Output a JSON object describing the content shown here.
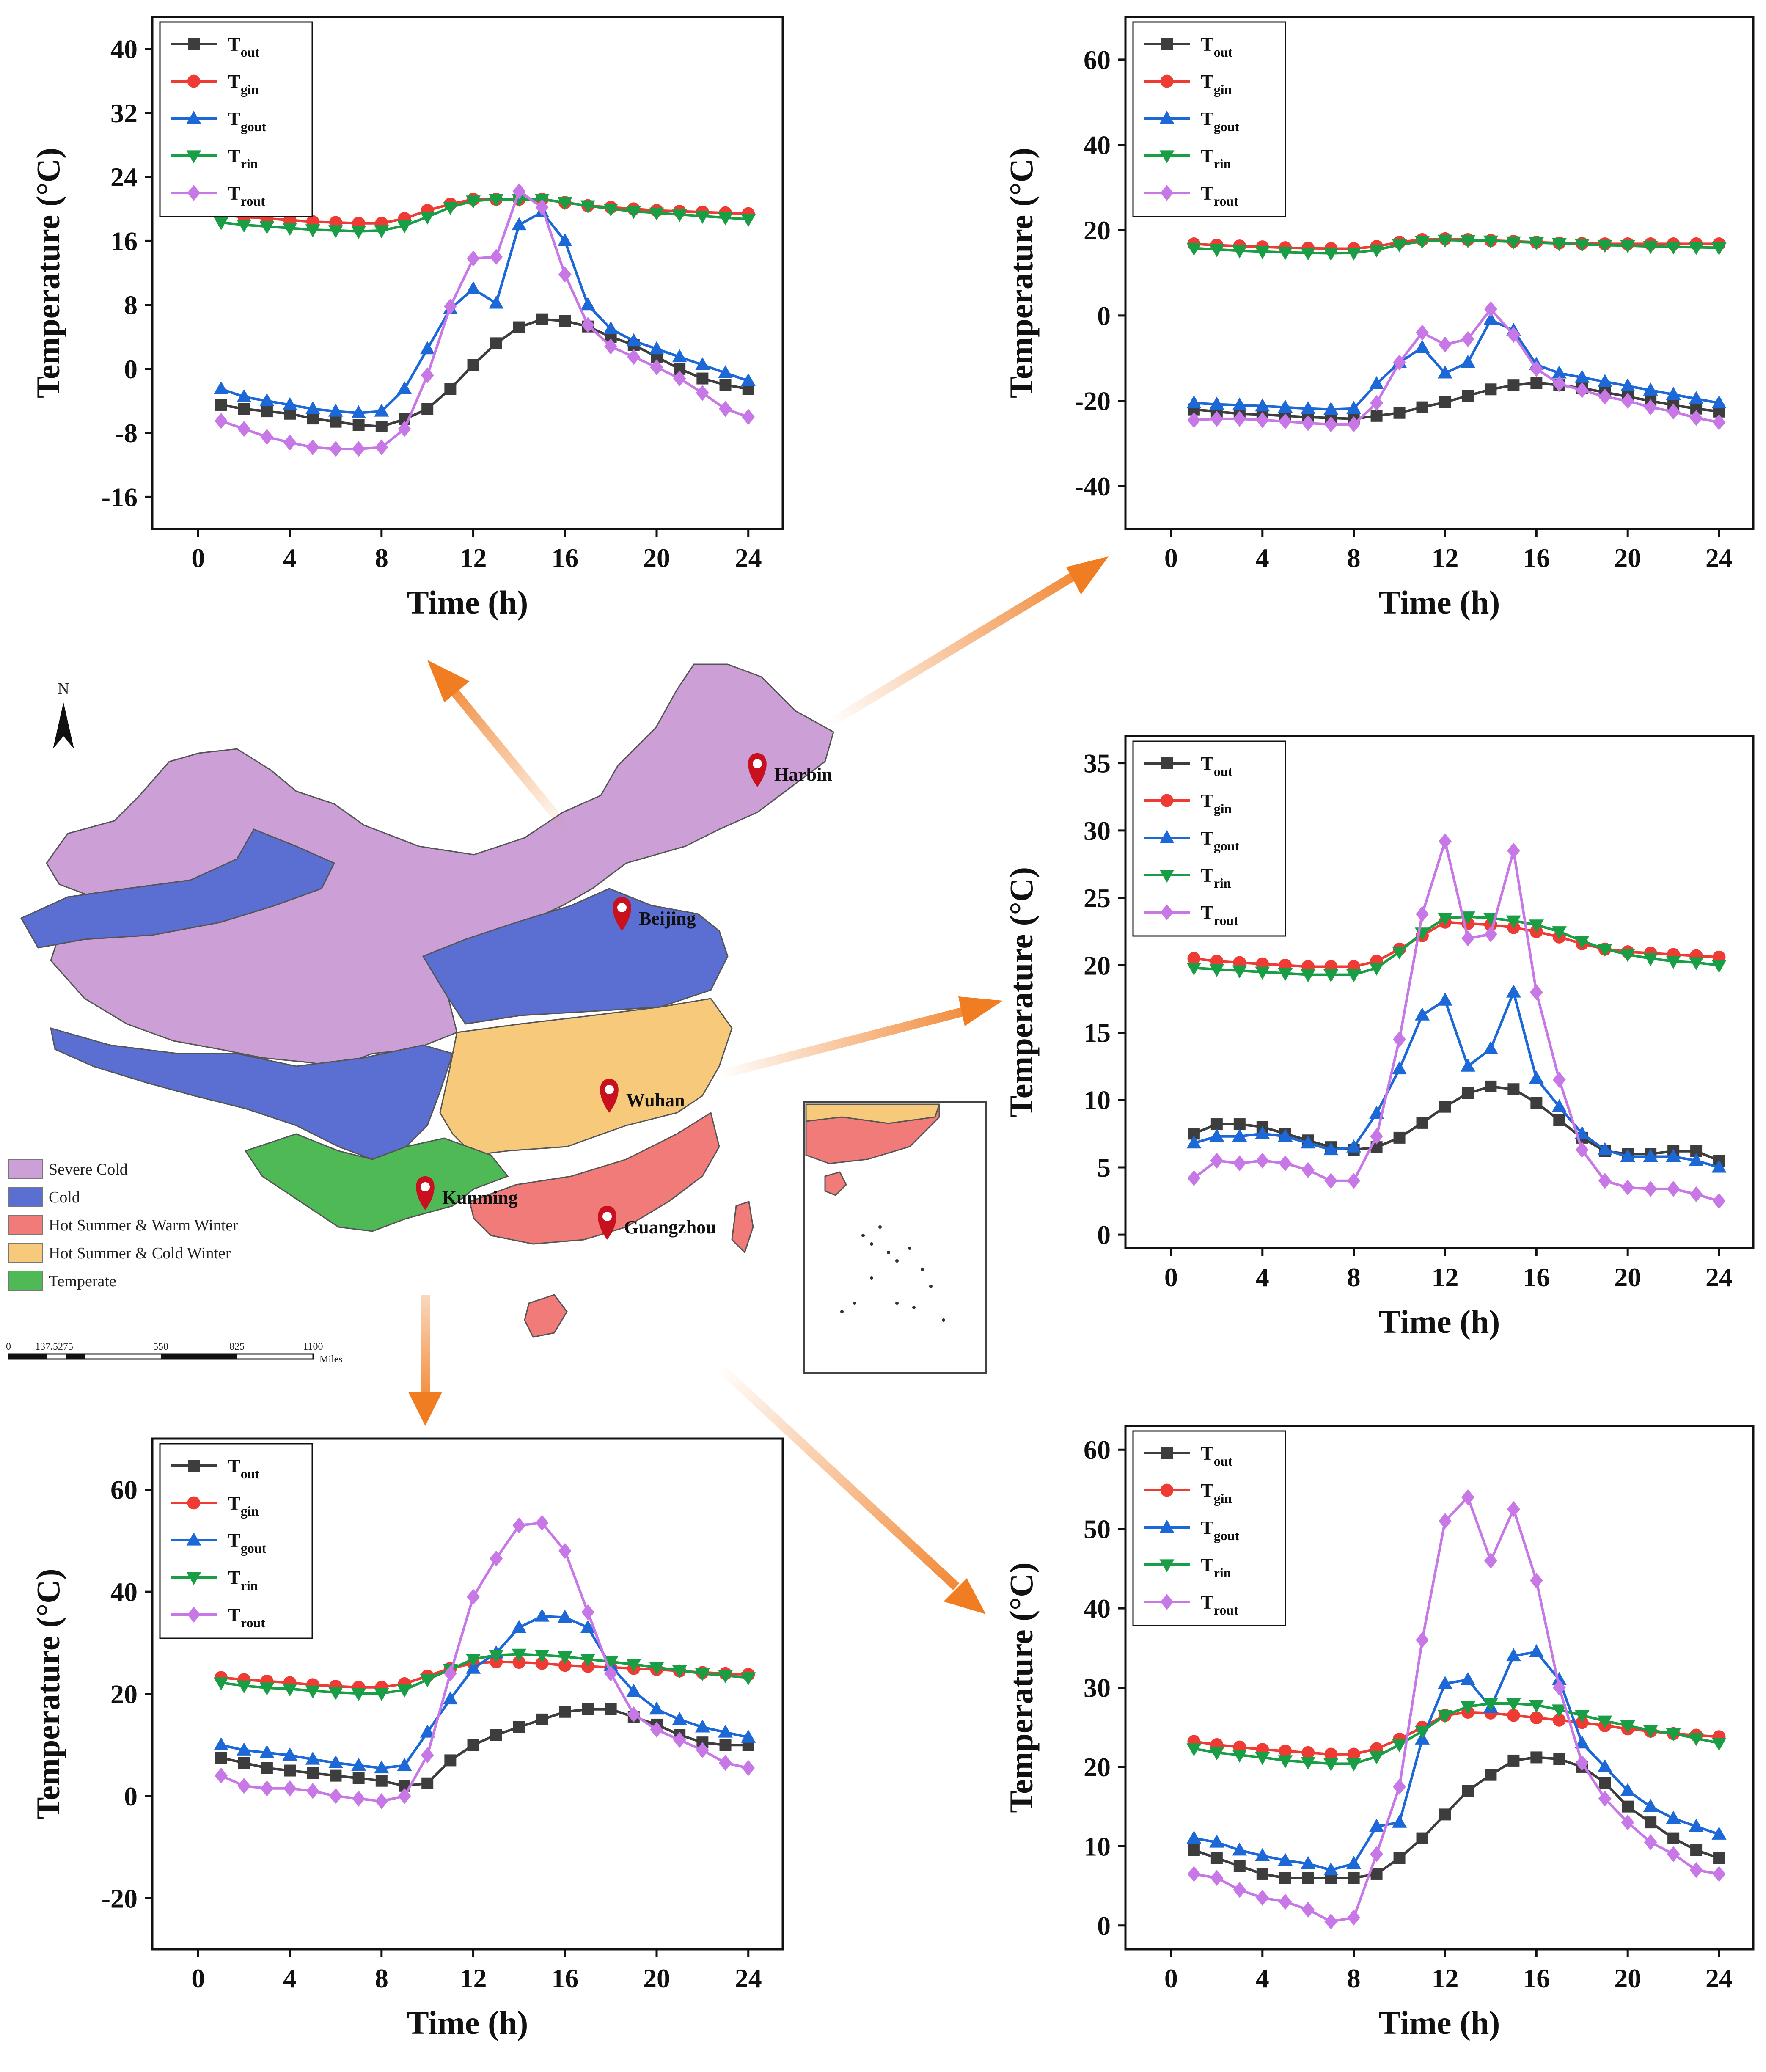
{
  "map": {
    "north_label": "N",
    "legend": [
      {
        "label": "Severe Cold",
        "color": "#cc9fd6"
      },
      {
        "label": "Cold",
        "color": "#5a6fd1"
      },
      {
        "label": "Hot Summer & Warm Winter",
        "color": "#f07b78"
      },
      {
        "label": "Hot Summer & Cold Winter",
        "color": "#f7c97a"
      },
      {
        "label": "Temperate",
        "color": "#4fba55"
      }
    ],
    "cities": [
      "Harbin",
      "Beijing",
      "Wuhan",
      "Kunming",
      "Guangzhou"
    ],
    "scale_ticks": [
      "0",
      "137.5",
      "275",
      "550",
      "825",
      "1100"
    ],
    "scale_unit": "Miles",
    "arrow_color": "#f07d22"
  },
  "chart_data": [
    {
      "id": "beijing",
      "type": "line",
      "xlabel": "Time (h)",
      "ylabel": "Temperature (°C)",
      "xlim": [
        -2,
        25.5
      ],
      "ylim": [
        -20,
        44
      ],
      "xticks": [
        0,
        4,
        8,
        12,
        16,
        20,
        24
      ],
      "yticks": [
        -16,
        -8,
        0,
        8,
        16,
        24,
        32,
        40
      ],
      "x": [
        1,
        2,
        3,
        4,
        5,
        6,
        7,
        8,
        9,
        10,
        11,
        12,
        13,
        14,
        15,
        16,
        17,
        18,
        19,
        20,
        21,
        22,
        23,
        24
      ],
      "series": [
        {
          "name": "T",
          "sub": "out",
          "color": "#3d3d3d",
          "marker": "square",
          "values": [
            -4.5,
            -5,
            -5.3,
            -5.6,
            -6.2,
            -6.6,
            -7,
            -7.2,
            -6.3,
            -5,
            -2.5,
            0.5,
            3.2,
            5.2,
            6.2,
            6,
            5.3,
            4,
            3,
            1.5,
            0,
            -1.2,
            -2,
            -2.5
          ]
        },
        {
          "name": "T",
          "sub": "gin",
          "color": "#ee3b33",
          "marker": "circle",
          "values": [
            19.2,
            19,
            18.8,
            18.6,
            18.4,
            18.3,
            18.2,
            18.2,
            18.8,
            19.8,
            20.6,
            21.2,
            21.2,
            21.2,
            21.2,
            20.8,
            20.4,
            20.2,
            20,
            19.8,
            19.7,
            19.6,
            19.5,
            19.4
          ]
        },
        {
          "name": "T",
          "sub": "gout",
          "color": "#1b68d6",
          "marker": "triangle-up",
          "values": [
            -2.5,
            -3.5,
            -4,
            -4.5,
            -5,
            -5.3,
            -5.5,
            -5.3,
            -2.5,
            2.5,
            7.5,
            10,
            8.2,
            18,
            19.6,
            16,
            8,
            5,
            3.5,
            2.5,
            1.5,
            0.5,
            -0.5,
            -1.5
          ]
        },
        {
          "name": "T",
          "sub": "rin",
          "color": "#1a9e45",
          "marker": "triangle-down",
          "values": [
            18.3,
            18,
            17.8,
            17.6,
            17.4,
            17.3,
            17.2,
            17.3,
            17.9,
            19,
            20.2,
            21,
            21.2,
            21.2,
            21.2,
            20.8,
            20.4,
            20,
            19.7,
            19.5,
            19.3,
            19.1,
            18.9,
            18.7
          ]
        },
        {
          "name": "T",
          "sub": "rout",
          "color": "#c878e6",
          "marker": "diamond",
          "values": [
            -6.5,
            -7.5,
            -8.5,
            -9.2,
            -9.8,
            -10,
            -10,
            -9.8,
            -7.5,
            -0.8,
            7.8,
            13.8,
            14,
            22.2,
            20.2,
            11.8,
            5.5,
            2.8,
            1.5,
            0.2,
            -1.2,
            -3,
            -5,
            -6
          ]
        }
      ]
    },
    {
      "id": "harbin",
      "type": "line",
      "xlabel": "Time (h)",
      "ylabel": "Temperature (°C)",
      "xlim": [
        -2,
        25.5
      ],
      "ylim": [
        -50,
        70
      ],
      "xticks": [
        0,
        4,
        8,
        12,
        16,
        20,
        24
      ],
      "yticks": [
        -40,
        -20,
        0,
        20,
        40,
        60
      ],
      "x": [
        1,
        2,
        3,
        4,
        5,
        6,
        7,
        8,
        9,
        10,
        11,
        12,
        13,
        14,
        15,
        16,
        17,
        18,
        19,
        20,
        21,
        22,
        23,
        24
      ],
      "series": [
        {
          "name": "T",
          "sub": "out",
          "color": "#3d3d3d",
          "marker": "square",
          "values": [
            -22,
            -22.5,
            -23,
            -23.2,
            -23.5,
            -23.8,
            -24,
            -24.2,
            -23.5,
            -22.8,
            -21.5,
            -20.3,
            -18.8,
            -17.3,
            -16.3,
            -15.8,
            -16.3,
            -17,
            -18,
            -19,
            -20,
            -21,
            -21.8,
            -22.5
          ]
        },
        {
          "name": "T",
          "sub": "gin",
          "color": "#ee3b33",
          "marker": "circle",
          "values": [
            16.8,
            16.5,
            16.3,
            16.1,
            15.9,
            15.8,
            15.7,
            15.7,
            16.2,
            17.2,
            17.8,
            18,
            17.8,
            17.6,
            17.4,
            17.2,
            17,
            16.9,
            16.8,
            16.8,
            16.8,
            16.8,
            16.8,
            16.8
          ]
        },
        {
          "name": "T",
          "sub": "gout",
          "color": "#1b68d6",
          "marker": "triangle-up",
          "values": [
            -20.5,
            -20.8,
            -21,
            -21.2,
            -21.5,
            -21.8,
            -22,
            -21.8,
            -16,
            -11,
            -7.5,
            -13.5,
            -11,
            -1,
            -3.5,
            -11.5,
            -13.5,
            -14.5,
            -15.5,
            -16.5,
            -17.5,
            -18.5,
            -19.5,
            -20.5
          ]
        },
        {
          "name": "T",
          "sub": "rin",
          "color": "#1a9e45",
          "marker": "triangle-down",
          "values": [
            15.8,
            15.5,
            15.2,
            15,
            14.8,
            14.7,
            14.6,
            14.7,
            15.4,
            16.6,
            17.4,
            17.7,
            17.6,
            17.5,
            17.3,
            17.1,
            16.9,
            16.7,
            16.5,
            16.4,
            16.2,
            16.1,
            16,
            15.9
          ]
        },
        {
          "name": "T",
          "sub": "rout",
          "color": "#c878e6",
          "marker": "diamond",
          "values": [
            -24.5,
            -24.2,
            -24.2,
            -24.5,
            -24.8,
            -25.2,
            -25.5,
            -25.5,
            -20.5,
            -11,
            -4,
            -6.8,
            -5.5,
            1.5,
            -4.5,
            -12.5,
            -16,
            -17.5,
            -19,
            -20,
            -21.5,
            -22.5,
            -24,
            -25
          ]
        }
      ]
    },
    {
      "id": "wuhan",
      "type": "line",
      "xlabel": "Time (h)",
      "ylabel": "Temperature (°C)",
      "xlim": [
        -2,
        25.5
      ],
      "ylim": [
        -1,
        37
      ],
      "xticks": [
        0,
        4,
        8,
        12,
        16,
        20,
        24
      ],
      "yticks": [
        0,
        5,
        10,
        15,
        20,
        25,
        30,
        35
      ],
      "x": [
        1,
        2,
        3,
        4,
        5,
        6,
        7,
        8,
        9,
        10,
        11,
        12,
        13,
        14,
        15,
        16,
        17,
        18,
        19,
        20,
        21,
        22,
        23,
        24
      ],
      "series": [
        {
          "name": "T",
          "sub": "out",
          "color": "#3d3d3d",
          "marker": "square",
          "values": [
            7.5,
            8.2,
            8.2,
            8,
            7.5,
            7,
            6.5,
            6.3,
            6.5,
            7.2,
            8.3,
            9.5,
            10.5,
            11,
            10.8,
            9.8,
            8.5,
            7.2,
            6.2,
            6,
            6,
            6.2,
            6.2,
            5.5
          ]
        },
        {
          "name": "T",
          "sub": "gin",
          "color": "#ee3b33",
          "marker": "circle",
          "values": [
            20.5,
            20.3,
            20.2,
            20.1,
            20,
            19.9,
            19.9,
            19.9,
            20.3,
            21.2,
            22.2,
            23.2,
            23.1,
            23,
            22.8,
            22.5,
            22.1,
            21.6,
            21.2,
            21,
            20.9,
            20.8,
            20.7,
            20.6
          ]
        },
        {
          "name": "T",
          "sub": "gout",
          "color": "#1b68d6",
          "marker": "triangle-up",
          "values": [
            6.8,
            7.3,
            7.3,
            7.5,
            7.3,
            6.8,
            6.3,
            6.5,
            9,
            12.3,
            16.3,
            17.4,
            12.5,
            13.8,
            18,
            11.6,
            9.5,
            7.5,
            6.3,
            5.8,
            5.8,
            5.8,
            5.5,
            5
          ]
        },
        {
          "name": "T",
          "sub": "rin",
          "color": "#1a9e45",
          "marker": "triangle-down",
          "values": [
            19.8,
            19.7,
            19.6,
            19.5,
            19.4,
            19.3,
            19.3,
            19.3,
            19.8,
            21,
            22.4,
            23.5,
            23.6,
            23.5,
            23.3,
            23,
            22.5,
            21.8,
            21.2,
            20.8,
            20.5,
            20.3,
            20.2,
            20
          ]
        },
        {
          "name": "T",
          "sub": "rout",
          "color": "#c878e6",
          "marker": "diamond",
          "values": [
            4.2,
            5.5,
            5.3,
            5.5,
            5.3,
            4.8,
            4,
            4,
            7.3,
            14.5,
            23.8,
            29.2,
            22,
            22.3,
            28.5,
            18,
            11.5,
            6.3,
            4,
            3.5,
            3.4,
            3.4,
            3,
            2.5
          ]
        }
      ]
    },
    {
      "id": "kunming",
      "type": "line",
      "xlabel": "Time (h)",
      "ylabel": "Temperature (°C)",
      "xlim": [
        -2,
        25.5
      ],
      "ylim": [
        -30,
        70
      ],
      "xticks": [
        0,
        4,
        8,
        12,
        16,
        20,
        24
      ],
      "yticks": [
        -20,
        0,
        20,
        40,
        60
      ],
      "x": [
        1,
        2,
        3,
        4,
        5,
        6,
        7,
        8,
        9,
        10,
        11,
        12,
        13,
        14,
        15,
        16,
        17,
        18,
        19,
        20,
        21,
        22,
        23,
        24
      ],
      "series": [
        {
          "name": "T",
          "sub": "out",
          "color": "#3d3d3d",
          "marker": "square",
          "values": [
            7.5,
            6.5,
            5.5,
            5,
            4.5,
            4,
            3.5,
            3,
            2,
            2.5,
            7,
            10,
            12,
            13.5,
            15,
            16.5,
            17,
            17,
            15.5,
            14,
            12,
            10.5,
            10,
            10
          ]
        },
        {
          "name": "T",
          "sub": "gin",
          "color": "#ee3b33",
          "marker": "circle",
          "values": [
            23.2,
            22.8,
            22.5,
            22.2,
            21.8,
            21.5,
            21.3,
            21.3,
            22,
            23.5,
            25,
            26,
            26.3,
            26.2,
            26,
            25.6,
            25.4,
            25.2,
            25,
            24.8,
            24.5,
            24.2,
            24,
            23.8
          ]
        },
        {
          "name": "T",
          "sub": "gout",
          "color": "#1b68d6",
          "marker": "triangle-up",
          "values": [
            10,
            9,
            8.5,
            8,
            7.2,
            6.5,
            6,
            5.5,
            6,
            12.5,
            19,
            25,
            28,
            33,
            35.2,
            35,
            33,
            25.5,
            20.5,
            17,
            15,
            13.5,
            12.5,
            11.5
          ]
        },
        {
          "name": "T",
          "sub": "rin",
          "color": "#1a9e45",
          "marker": "triangle-down",
          "values": [
            22.2,
            21.6,
            21.2,
            21,
            20.6,
            20.3,
            20.1,
            20.1,
            20.8,
            22.8,
            24.8,
            26.8,
            27.6,
            27.8,
            27.6,
            27.3,
            26.8,
            26.3,
            25.8,
            25.2,
            24.6,
            24,
            23.6,
            23.2
          ]
        },
        {
          "name": "T",
          "sub": "rout",
          "color": "#c878e6",
          "marker": "diamond",
          "values": [
            4,
            2,
            1.5,
            1.5,
            1,
            0,
            -0.5,
            -1,
            0,
            8,
            24,
            39,
            46.5,
            53,
            53.5,
            48,
            36,
            24,
            16,
            13,
            11,
            9,
            6.5,
            5.5
          ]
        }
      ]
    },
    {
      "id": "guangzhou",
      "type": "line",
      "xlabel": "Time (h)",
      "ylabel": "Temperature (°C)",
      "xlim": [
        -2,
        25.5
      ],
      "ylim": [
        -3,
        63
      ],
      "xticks": [
        0,
        4,
        8,
        12,
        16,
        20,
        24
      ],
      "yticks": [
        0,
        10,
        20,
        30,
        40,
        50,
        60
      ],
      "x": [
        1,
        2,
        3,
        4,
        5,
        6,
        7,
        8,
        9,
        10,
        11,
        12,
        13,
        14,
        15,
        16,
        17,
        18,
        19,
        20,
        21,
        22,
        23,
        24
      ],
      "series": [
        {
          "name": "T",
          "sub": "out",
          "color": "#3d3d3d",
          "marker": "square",
          "values": [
            9.5,
            8.5,
            7.5,
            6.5,
            6,
            6,
            6,
            6,
            6.5,
            8.5,
            11,
            14,
            17,
            19,
            20.8,
            21.2,
            21,
            20,
            18,
            15,
            13,
            11,
            9.5,
            8.5
          ]
        },
        {
          "name": "T",
          "sub": "gin",
          "color": "#ee3b33",
          "marker": "circle",
          "values": [
            23.2,
            22.8,
            22.5,
            22.2,
            22,
            21.8,
            21.6,
            21.6,
            22.3,
            23.5,
            25,
            26.5,
            26.9,
            26.8,
            26.5,
            26.2,
            25.9,
            25.6,
            25.2,
            24.8,
            24.5,
            24.2,
            24,
            23.8
          ]
        },
        {
          "name": "T",
          "sub": "gout",
          "color": "#1b68d6",
          "marker": "triangle-up",
          "values": [
            11,
            10.5,
            9.5,
            8.8,
            8.2,
            7.8,
            7,
            7.8,
            12.5,
            13,
            23.5,
            30.5,
            31,
            27.5,
            34,
            34.5,
            31,
            23,
            20,
            17,
            15,
            13.5,
            12.5,
            11.5
          ]
        },
        {
          "name": "T",
          "sub": "rin",
          "color": "#1a9e45",
          "marker": "triangle-down",
          "values": [
            22.3,
            21.8,
            21.5,
            21.2,
            20.8,
            20.6,
            20.4,
            20.4,
            21.3,
            22.8,
            24.5,
            26.5,
            27.6,
            28,
            28,
            27.8,
            27.2,
            26.5,
            25.8,
            25.2,
            24.6,
            24.2,
            23.6,
            23
          ]
        },
        {
          "name": "T",
          "sub": "rout",
          "color": "#c878e6",
          "marker": "diamond",
          "values": [
            6.5,
            6,
            4.5,
            3.5,
            3,
            2,
            0.5,
            1,
            9,
            17.5,
            36,
            51,
            54,
            46,
            52.5,
            43.5,
            30,
            20.5,
            16,
            13,
            10.5,
            9,
            7,
            6.5
          ]
        }
      ]
    }
  ]
}
